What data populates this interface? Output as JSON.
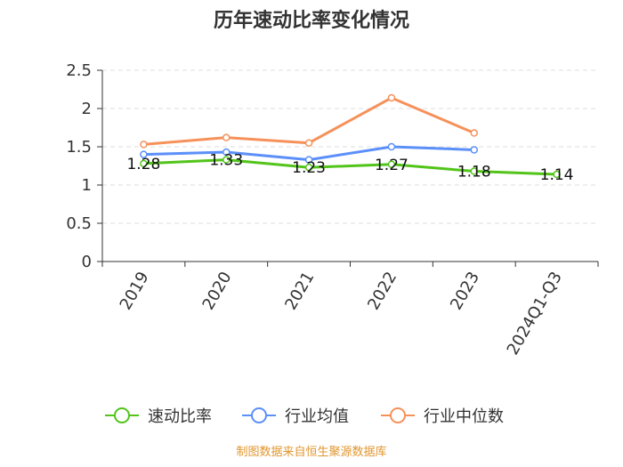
{
  "chart_data": {
    "type": "line",
    "title": "历年速动比率变化情况",
    "categories": [
      "2019",
      "2020",
      "2021",
      "2022",
      "2023",
      "2024Q1-Q3"
    ],
    "ylim": [
      0,
      2.5
    ],
    "yticks": [
      "0",
      "0.5",
      "1",
      "1.5",
      "2",
      "2.5"
    ],
    "grid": true,
    "legend_position": "bottom",
    "series": [
      {
        "name": "速动比率",
        "color": "#52c41a",
        "values": [
          1.28,
          1.33,
          1.23,
          1.27,
          1.18,
          1.14
        ],
        "labels": [
          "1.28",
          "1.33",
          "1.23",
          "1.27",
          "1.18",
          "1.14"
        ]
      },
      {
        "name": "行业均值",
        "color": "#5b8ff9",
        "values": [
          1.4,
          1.43,
          1.33,
          1.5,
          1.46,
          null
        ]
      },
      {
        "name": "行业中位数",
        "color": "#f6915a",
        "values": [
          1.53,
          1.62,
          1.55,
          2.14,
          1.68,
          null
        ]
      }
    ],
    "source": "制图数据来自恒生聚源数据库"
  }
}
